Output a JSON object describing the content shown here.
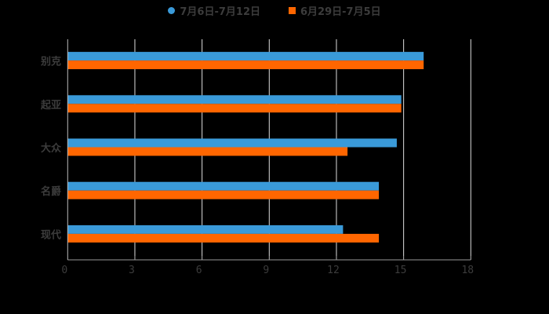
{
  "chart_data": {
    "type": "bar",
    "orientation": "horizontal",
    "title": "",
    "xlabel": "",
    "ylabel": "",
    "categories": [
      "别克",
      "起亚",
      "大众",
      "名爵",
      "现代"
    ],
    "series": [
      {
        "name": "7月6日-7月12日",
        "color": "#3A9AD9",
        "marker": "circle",
        "values": [
          16,
          15,
          14.8,
          14,
          12.4
        ]
      },
      {
        "name": "6月29日-7月5日",
        "color": "#FF6600",
        "marker": "square",
        "values": [
          16,
          15,
          12.6,
          14,
          14
        ]
      }
    ],
    "xlim": [
      0,
      18
    ],
    "xticks": [
      0,
      3,
      6,
      9,
      12,
      15,
      18
    ],
    "grid": true,
    "legend_position": "top",
    "background": "#000000",
    "axis_color": "#bbbbbb",
    "text_color": "#3c3c3c"
  },
  "legend": {
    "items": [
      {
        "label": "7月6日-7月12日",
        "color": "#3A9AD9"
      },
      {
        "label": "6月29日-7月5日",
        "color": "#FF6600"
      }
    ]
  }
}
